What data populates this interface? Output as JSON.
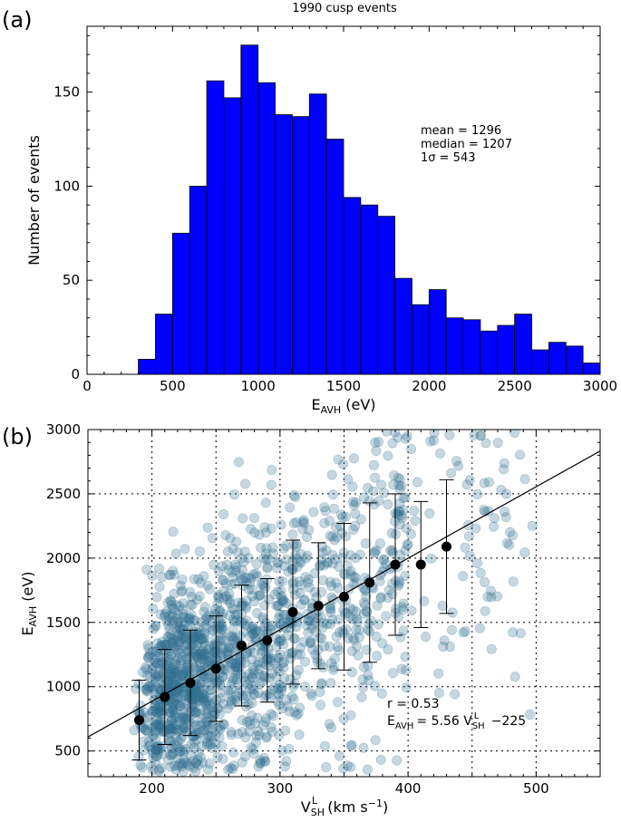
{
  "colors": {
    "bar": "#0000ff",
    "scatter": "#31708f",
    "mean": "#000000",
    "fit": "#000000"
  },
  "chart_data": [
    {
      "panel": "(a)",
      "type": "bar",
      "title": "1990 cusp events",
      "xlabel": {
        "main": "E",
        "sub": "AVH",
        "rest": " (eV)"
      },
      "ylabel": "Number of events",
      "xlim": [
        0,
        3000
      ],
      "ylim": [
        0,
        185
      ],
      "xticks": [
        0,
        500,
        1000,
        1500,
        2000,
        2500,
        3000
      ],
      "yticks": [
        0,
        50,
        100,
        150
      ],
      "bin_width": 100,
      "bin_starts": [
        300,
        400,
        500,
        600,
        700,
        800,
        900,
        1000,
        1100,
        1200,
        1300,
        1400,
        1500,
        1600,
        1700,
        1800,
        1900,
        2000,
        2100,
        2200,
        2300,
        2400,
        2500,
        2600,
        2700,
        2800,
        2900
      ],
      "values": [
        8,
        32,
        75,
        100,
        156,
        147,
        175,
        155,
        138,
        137,
        149,
        125,
        94,
        90,
        84,
        51,
        37,
        45,
        30,
        29,
        23,
        26,
        32,
        13,
        17,
        15,
        6
      ],
      "annotations": [
        "mean = 1296",
        "median = 1207",
        "1σ =  543"
      ]
    },
    {
      "panel": "(b)",
      "type": "scatter",
      "xlabel": {
        "main": "V",
        "sub": "SH",
        "sup": "L",
        "rest": " (km s",
        "unit_sup": "−1",
        "close": ")"
      },
      "ylabel": {
        "main": "E",
        "sub": "AVH",
        "rest": " (eV)"
      },
      "xlim": [
        150,
        550
      ],
      "ylim": [
        300,
        3000
      ],
      "xticks": [
        200,
        300,
        400,
        500
      ],
      "yticks": [
        500,
        1000,
        1500,
        2000,
        2500,
        3000
      ],
      "grid_x": [
        200,
        250,
        300,
        350,
        400,
        450,
        500
      ],
      "grid_y": [
        500,
        1000,
        1500,
        2000,
        2500
      ],
      "binned_means": {
        "x": [
          190,
          210,
          230,
          250,
          270,
          290,
          310,
          330,
          350,
          370,
          390,
          410,
          430
        ],
        "y": [
          740,
          920,
          1030,
          1140,
          1320,
          1360,
          1580,
          1630,
          1700,
          1810,
          1950,
          1950,
          2090
        ],
        "err": [
          310,
          370,
          410,
          410,
          470,
          480,
          560,
          490,
          570,
          620,
          550,
          490,
          520
        ]
      },
      "fit": {
        "slope": 5.56,
        "intercept": -225
      },
      "annotations": {
        "r": "r = 0.53",
        "fit_lhs": "E",
        "fit_lhs_sub": "AVH",
        "fit_eq": "=  5.56 V",
        "fit_sub": "SH",
        "fit_sup": "L",
        "fit_const": " −225"
      },
      "scatter_points": {
        "count": 1600,
        "description_only": false
      }
    }
  ]
}
